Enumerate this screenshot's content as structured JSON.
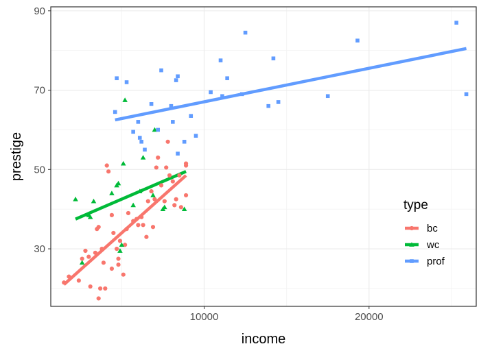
{
  "chart_data": {
    "type": "scatter",
    "title": "",
    "xlabel": "income",
    "ylabel": "prestige",
    "xlim": [
      700,
      26500
    ],
    "ylim": [
      15.5,
      91
    ],
    "x_ticks": [
      {
        "value": 10000,
        "label": "10000"
      },
      {
        "value": 20000,
        "label": "20000"
      }
    ],
    "x_minor_ticks": [
      5000,
      15000,
      25000
    ],
    "y_ticks": [
      {
        "value": 30,
        "label": "30"
      },
      {
        "value": 50,
        "label": "50"
      },
      {
        "value": 70,
        "label": "70"
      },
      {
        "value": 90,
        "label": "90"
      }
    ],
    "y_minor_ticks": [
      20,
      40,
      60,
      80
    ],
    "grid": true,
    "legend": {
      "title": "type",
      "position": "right-inside"
    },
    "series": [
      {
        "name": "bc",
        "color": "#F8766D",
        "marker": "circle",
        "points": [
          [
            1500,
            21.5
          ],
          [
            1800,
            23
          ],
          [
            2400,
            22
          ],
          [
            2600,
            27.5
          ],
          [
            2800,
            29.5
          ],
          [
            3000,
            28
          ],
          [
            3100,
            20.5
          ],
          [
            3400,
            29
          ],
          [
            3500,
            35
          ],
          [
            3600,
            35.5
          ],
          [
            3600,
            17.5
          ],
          [
            3700,
            20
          ],
          [
            3800,
            30
          ],
          [
            3900,
            26.5
          ],
          [
            4000,
            20
          ],
          [
            4100,
            51
          ],
          [
            4200,
            49.5
          ],
          [
            4400,
            25
          ],
          [
            4400,
            38.5
          ],
          [
            4500,
            34
          ],
          [
            4700,
            30
          ],
          [
            4800,
            27.5
          ],
          [
            4800,
            26
          ],
          [
            4900,
            32
          ],
          [
            5100,
            23.5
          ],
          [
            5200,
            31
          ],
          [
            5300,
            35
          ],
          [
            5400,
            39
          ],
          [
            5700,
            37
          ],
          [
            5900,
            37.5
          ],
          [
            6000,
            36
          ],
          [
            6200,
            38
          ],
          [
            6300,
            36
          ],
          [
            6500,
            33
          ],
          [
            6600,
            42
          ],
          [
            6800,
            44.5
          ],
          [
            6900,
            35.5
          ],
          [
            7000,
            42.5
          ],
          [
            7100,
            50.5
          ],
          [
            7200,
            53
          ],
          [
            7400,
            46
          ],
          [
            7600,
            42
          ],
          [
            7700,
            50.5
          ],
          [
            7800,
            57
          ],
          [
            7900,
            48.5
          ],
          [
            8100,
            47
          ],
          [
            8200,
            41
          ],
          [
            8300,
            42.5
          ],
          [
            8500,
            48.5
          ],
          [
            8600,
            40.5
          ],
          [
            8900,
            51.5
          ],
          [
            8900,
            51
          ],
          [
            8900,
            43.5
          ]
        ],
        "fit": {
          "x": [
            1500,
            8900
          ],
          "y": [
            21,
            48.5
          ]
        }
      },
      {
        "name": "wc",
        "color": "#00BA38",
        "marker": "triangle",
        "points": [
          [
            2200,
            42.5
          ],
          [
            2600,
            26.5
          ],
          [
            3000,
            38.5
          ],
          [
            3100,
            38
          ],
          [
            3300,
            42
          ],
          [
            4400,
            44
          ],
          [
            4700,
            46
          ],
          [
            4800,
            46.5
          ],
          [
            4900,
            29.5
          ],
          [
            5000,
            31
          ],
          [
            5100,
            51.5
          ],
          [
            5200,
            67.5
          ],
          [
            5700,
            41
          ],
          [
            6100,
            44.5
          ],
          [
            6300,
            53
          ],
          [
            6900,
            43.5
          ],
          [
            7000,
            60
          ],
          [
            7500,
            40
          ],
          [
            7600,
            40.5
          ],
          [
            8800,
            40
          ]
        ],
        "fit": {
          "x": [
            2200,
            8900
          ],
          "y": [
            37.5,
            49.5
          ]
        }
      },
      {
        "name": "prof",
        "color": "#619CFF",
        "marker": "square",
        "points": [
          [
            4600,
            64.5
          ],
          [
            4700,
            73
          ],
          [
            5300,
            72
          ],
          [
            5700,
            59.5
          ],
          [
            6000,
            62
          ],
          [
            6100,
            58
          ],
          [
            6200,
            57
          ],
          [
            6400,
            55
          ],
          [
            6800,
            66.5
          ],
          [
            7200,
            60
          ],
          [
            7400,
            75
          ],
          [
            8000,
            66
          ],
          [
            8100,
            62
          ],
          [
            8300,
            72.5
          ],
          [
            8400,
            73.5
          ],
          [
            8400,
            54
          ],
          [
            8800,
            57
          ],
          [
            9200,
            63.5
          ],
          [
            9500,
            58.5
          ],
          [
            10400,
            69.5
          ],
          [
            11000,
            77.5
          ],
          [
            11100,
            68.5
          ],
          [
            11400,
            73
          ],
          [
            12300,
            69
          ],
          [
            12500,
            84.5
          ],
          [
            13900,
            66
          ],
          [
            14200,
            78
          ],
          [
            14500,
            67
          ],
          [
            17500,
            68.5
          ],
          [
            19300,
            82.5
          ],
          [
            25300,
            87
          ],
          [
            25900,
            69
          ]
        ],
        "fit": {
          "x": [
            4600,
            25900
          ],
          "y": [
            62.5,
            80.5
          ]
        }
      }
    ]
  }
}
